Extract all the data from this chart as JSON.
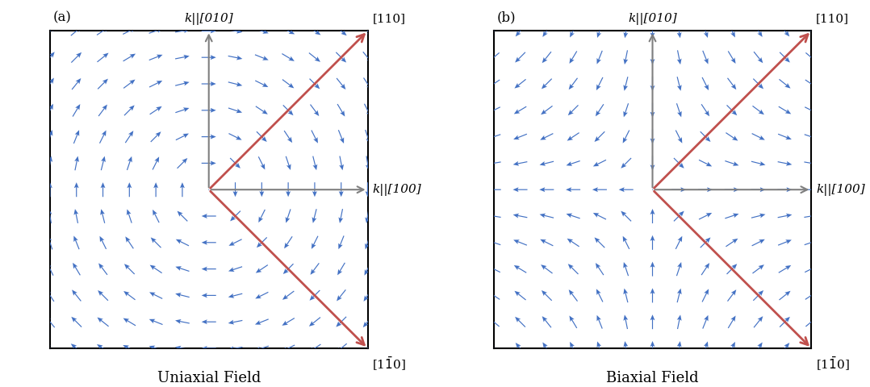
{
  "arrow_color": "#4472C4",
  "axis_color": "#7F7F7F",
  "orange_color": "#C0504D",
  "background": "#ffffff",
  "panel_a_title": "Uniaxial Field",
  "panel_b_title": "Biaxial Field",
  "label_010": "k||[010]",
  "label_100": "k||[100]",
  "label_110_top": "[110]",
  "panel_a_label": "(a)",
  "panel_b_label": "(b)",
  "grid_n": 13,
  "uniaxial_field": "rotation_yx",
  "biaxial_field": "hyperbolic_xy"
}
